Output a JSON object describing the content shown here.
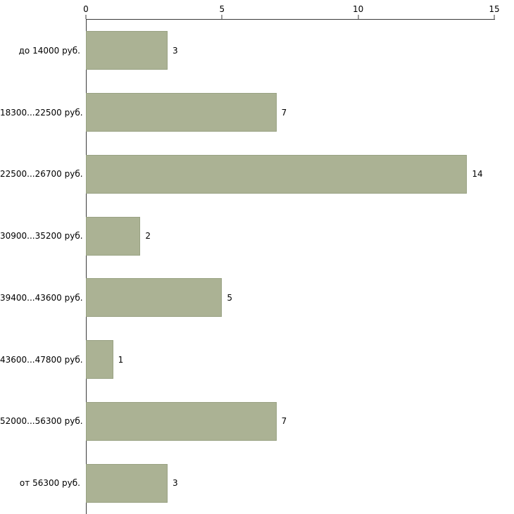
{
  "chart_data": {
    "type": "bar",
    "orientation": "horizontal",
    "title": "",
    "xlabel": "",
    "ylabel": "",
    "categories": [
      "до 14000 руб.",
      "18300...22500 руб.",
      "22500...26700 руб.",
      "30900...35200 руб.",
      "39400...43600 руб.",
      "43600...47800 руб.",
      "52000...56300 руб.",
      "от 56300 руб."
    ],
    "values": [
      3,
      7,
      14,
      2,
      5,
      1,
      7,
      3
    ],
    "xlim": [
      0,
      15
    ],
    "x_ticks": [
      "0",
      "5",
      "10",
      "15"
    ],
    "grid": false,
    "legend": false,
    "bar_color": "#abb294",
    "bar_border_color": "#99a283",
    "axis_color": "#3a3a3a",
    "background_color": "#ffffff"
  }
}
